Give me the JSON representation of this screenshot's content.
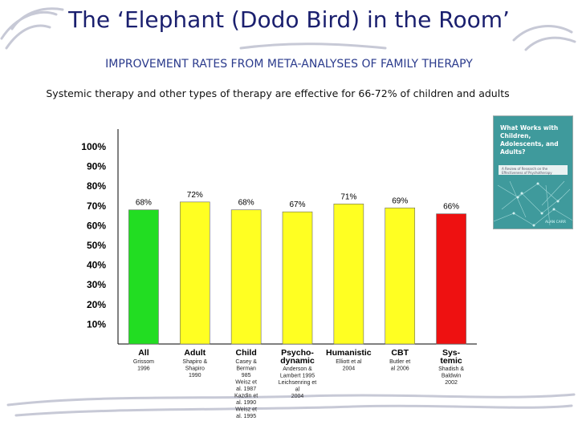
{
  "header": {
    "title": "The ‘Elephant (Dodo Bird) in the Room’",
    "subtitle": "IMPROVEMENT RATES FROM META-ANALYSES OF FAMILY THERAPY",
    "caption": "Systemic therapy and other types of therapy are effective for 66-72% of children and adults"
  },
  "book": {
    "title": "What Works with Children, Adolescents, and Adults?",
    "subtitle": "A Review of Research on the Effectiveness of Psychotherapy",
    "author": "ALAN CARR",
    "cover_color": "#3f9a9c"
  },
  "chart_data": {
    "type": "bar",
    "ylim": [
      0,
      100
    ],
    "yticks": [
      "100%",
      "90%",
      "80%",
      "70%",
      "60%",
      "50%",
      "40%",
      "30%",
      "20%",
      "10%"
    ],
    "ytick_values": [
      100,
      90,
      80,
      70,
      60,
      50,
      40,
      30,
      20,
      10
    ],
    "categories": [
      {
        "label": [
          "All"
        ],
        "value": 68,
        "value_label": "68%",
        "color": "#22dd22",
        "citation": [
          "Grissom",
          "1996"
        ]
      },
      {
        "label": [
          "Adult"
        ],
        "value": 72,
        "value_label": "72%",
        "color": "#ffff22",
        "citation": [
          "Shapiro &",
          "Shapiro",
          "1990"
        ]
      },
      {
        "label": [
          "Child"
        ],
        "value": 68,
        "value_label": "68%",
        "color": "#ffff22",
        "citation": [
          "Casey &",
          "Berman",
          "985",
          "Weisz et",
          "al. 1987",
          "Kazdin et",
          "al. 1990",
          "Weisz et",
          "al. 1995"
        ]
      },
      {
        "label": [
          "Psycho-",
          "dynamic"
        ],
        "value": 67,
        "value_label": "67%",
        "color": "#ffff22",
        "citation": [
          "Anderson &",
          "Lambert 1995",
          "Leichsenring et",
          "al",
          "2004"
        ]
      },
      {
        "label": [
          "Humanistic"
        ],
        "value": 71,
        "value_label": "71%",
        "color": "#ffff22",
        "citation": [
          "Elliott et al",
          "2004"
        ]
      },
      {
        "label": [
          "CBT"
        ],
        "value": 69,
        "value_label": "69%",
        "color": "#ffff22",
        "citation": [
          "Butler et",
          "al 2006"
        ]
      },
      {
        "label": [
          "Sys-",
          "temic"
        ],
        "value": 66,
        "value_label": "66%",
        "color": "#ee1111",
        "citation": [
          "Shadish &",
          "Baldwin",
          "2002"
        ]
      }
    ]
  }
}
